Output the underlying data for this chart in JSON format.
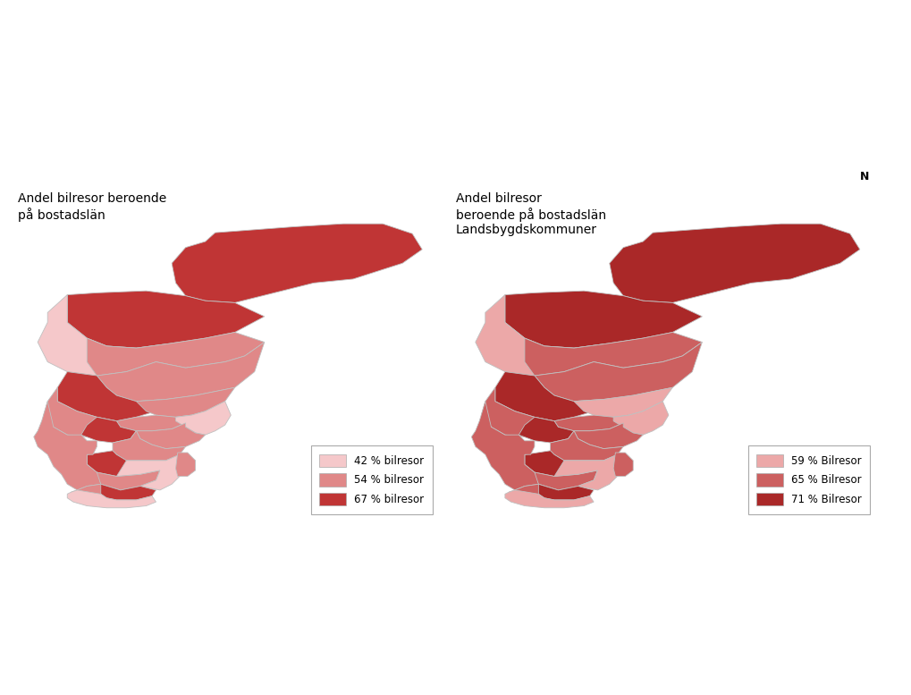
{
  "title_left": "Andel bilresor beroende\npå bostadslän",
  "title_right": "Andel bilresor\nberoende på bostadslän\nLandsbygdskommuner",
  "background_color": "#ffffff",
  "map_edge_color": "#c0c0c0",
  "legend_left": {
    "labels": [
      "42 % bilresor",
      "54 % bilresor",
      "67 % bilresor"
    ],
    "colors": [
      "#f5c8ca",
      "#e08888",
      "#c03535"
    ]
  },
  "legend_right": {
    "labels": [
      "59 % Bilresor",
      "65 % Bilresor",
      "71 % Bilresor"
    ],
    "colors": [
      "#eca8a8",
      "#cc6060",
      "#aa2828"
    ]
  },
  "colors_left": {
    "Norrbotten": "#c03535",
    "Västerbotten": "#c03535",
    "Jämtland": "#f5c8ca",
    "Västernorrland": "#e08888",
    "Gävleborg": "#e08888",
    "Dalarna": "#c03535",
    "Värmland": "#e08888",
    "Uppsala": "#e08888",
    "Västmanland": "#e08888",
    "Örebro": "#c03535",
    "Stockholm": "#f5c8ca",
    "Södermanland": "#e08888",
    "Östergötland": "#e08888",
    "Jönköping": "#c03535",
    "Kronoberg": "#e08888",
    "Kalmar": "#f5c8ca",
    "Västra Götaland": "#e08888",
    "Halland": "#e08888",
    "Blekinge": "#c03535",
    "Skåne": "#f5c8ca",
    "Gotland": "#e08888"
  },
  "colors_right": {
    "Norrbotten": "#aa2828",
    "Västerbotten": "#aa2828",
    "Jämtland": "#eca8a8",
    "Västernorrland": "#cc6060",
    "Gävleborg": "#cc6060",
    "Dalarna": "#aa2828",
    "Värmland": "#cc6060",
    "Uppsala": "#eca8a8",
    "Västmanland": "#cc6060",
    "Örebro": "#aa2828",
    "Stockholm": "#eca8a8",
    "Södermanland": "#cc6060",
    "Östergötland": "#cc6060",
    "Jönköping": "#aa2828",
    "Kronoberg": "#cc6060",
    "Kalmar": "#eca8a8",
    "Västra Götaland": "#cc6060",
    "Halland": "#cc6060",
    "Blekinge": "#aa2828",
    "Skåne": "#eca8a8",
    "Gotland": "#cc6060"
  }
}
